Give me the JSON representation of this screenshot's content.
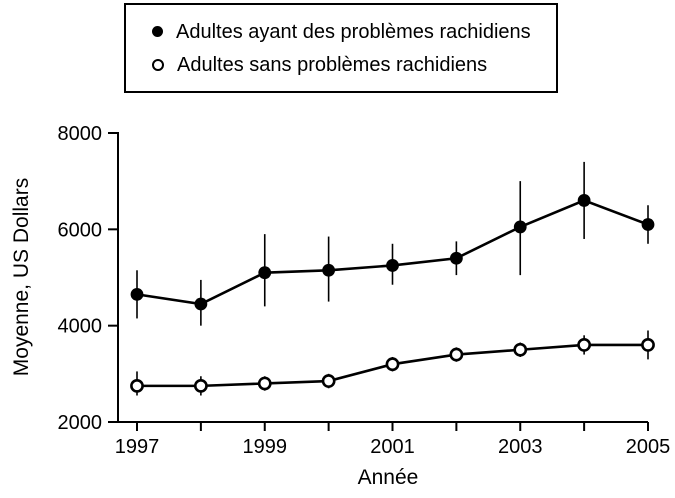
{
  "legend": {
    "items": [
      {
        "label": "Adultes ayant des problèmes rachidiens",
        "marker": "filled-circle"
      },
      {
        "label": "Adultes sans problèmes rachidiens",
        "marker": "open-circle"
      }
    ]
  },
  "chart_data": {
    "type": "line",
    "title": "",
    "xlabel": "Année",
    "ylabel": "Moyenne, US Dollars",
    "x": [
      1997,
      1998,
      1999,
      2000,
      2001,
      2002,
      2003,
      2004,
      2005
    ],
    "xticks": [
      1997,
      1998,
      1999,
      2000,
      2001,
      2002,
      2003,
      2004,
      2005
    ],
    "xtick_labeled": [
      1997,
      1999,
      2001,
      2003,
      2005
    ],
    "ylim": [
      2000,
      8000
    ],
    "yticks": [
      2000,
      4000,
      6000,
      8000
    ],
    "grid": false,
    "legend_position": "top",
    "error_bars": true,
    "series": [
      {
        "name": "Adultes ayant des problèmes rachidiens",
        "marker": "filled-circle",
        "color": "#000000",
        "values": [
          4650,
          4450,
          5100,
          5150,
          5250,
          5400,
          6050,
          6600,
          6100
        ],
        "error_low": [
          4150,
          4000,
          4400,
          4500,
          4850,
          5050,
          5050,
          5800,
          5700
        ],
        "error_high": [
          5150,
          4950,
          5900,
          5850,
          5700,
          5750,
          7000,
          7400,
          6500
        ]
      },
      {
        "name": "Adultes sans problèmes rachidiens",
        "marker": "open-circle",
        "color": "#000000",
        "values": [
          2750,
          2750,
          2800,
          2850,
          3200,
          3400,
          3500,
          3600,
          3600
        ],
        "error_low": [
          2550,
          2550,
          2650,
          2700,
          3050,
          3250,
          3350,
          3400,
          3300
        ],
        "error_high": [
          3050,
          2950,
          2950,
          3000,
          3350,
          3550,
          3650,
          3800,
          3900
        ]
      }
    ]
  },
  "colors": {
    "foreground": "#000000",
    "background": "#ffffff"
  }
}
